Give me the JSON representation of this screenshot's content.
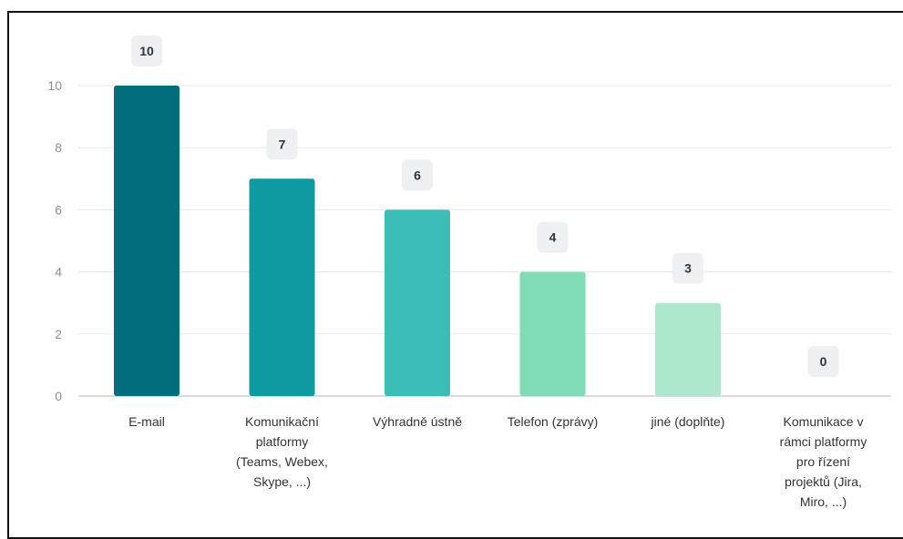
{
  "chart_data": {
    "type": "bar",
    "categories": [
      [
        "E-mail"
      ],
      [
        "Komunikační",
        "platformy",
        "(Teams, Webex,",
        "Skype, ...)"
      ],
      [
        "Výhradně ústně"
      ],
      [
        "Telefon (zprávy)"
      ],
      [
        "jiné (doplňte)"
      ],
      [
        "Komunikace v",
        "rámci platformy",
        "pro řízení",
        "projektů (Jira,",
        "Miro, ...)"
      ]
    ],
    "values": [
      10,
      7,
      6,
      4,
      3,
      0
    ],
    "data_labels": [
      "10",
      "7",
      "6",
      "4",
      "3",
      "0"
    ],
    "title": "",
    "xlabel": "",
    "ylabel": "",
    "ylim": [
      0,
      10
    ],
    "yticks": [
      0,
      2,
      4,
      6,
      8,
      10
    ],
    "ytick_labels": [
      "0",
      "2",
      "4",
      "6",
      "8",
      "10"
    ],
    "grid": true,
    "legend": "none",
    "colors": [
      "#006d7a",
      "#0f9aa2",
      "#3dbdb8",
      "#7fdcb6",
      "#ade8cd",
      "#c8efdc"
    ]
  }
}
